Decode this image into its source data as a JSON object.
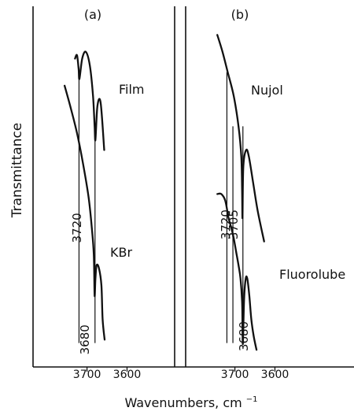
{
  "chart_data": {
    "type": "line",
    "ylabel": "Transmittance",
    "xlabel": "Wavenumbers, cm",
    "xlabel_superscript": "−1",
    "grid": false,
    "axis_color": "#111111",
    "line_color": "#111111",
    "panels": [
      {
        "label": "(a)",
        "x_ticks": [
          3700,
          3600
        ],
        "xlim": [
          3770,
          3540
        ],
        "reference_lines": [
          3720,
          3680
        ],
        "annotations": [
          {
            "text": "3720",
            "x": 3720,
            "y": 0.42
          },
          {
            "text": "3680",
            "x": 3680,
            "y": 0.09
          }
        ],
        "series": [
          {
            "name": "Film",
            "x": [
              3730,
              3725,
              3721,
              3719,
              3712,
              3703,
              3693,
              3685,
              3681,
              3679,
              3674,
              3666,
              3657
            ],
            "y": [
              0.92,
              0.93,
              0.89,
              0.86,
              0.92,
              0.94,
              0.9,
              0.81,
              0.72,
              0.68,
              0.78,
              0.79,
              0.65
            ]
          },
          {
            "name": "KBr",
            "x": [
              3756,
              3742,
              3725,
              3710,
              3696,
              3688,
              3683,
              3681,
              3679,
              3676,
              3670,
              3664,
              3661,
              3656
            ],
            "y": [
              0.84,
              0.78,
              0.7,
              0.61,
              0.51,
              0.42,
              0.34,
              0.22,
              0.27,
              0.31,
              0.3,
              0.25,
              0.15,
              0.09
            ]
          }
        ]
      },
      {
        "label": "(b)",
        "x_ticks": [
          3700,
          3600
        ],
        "xlim": [
          3770,
          3540
        ],
        "reference_lines": [
          3720,
          3705,
          3680
        ],
        "annotations": [
          {
            "text": "3720",
            "x": 3720,
            "y": 0.43
          },
          {
            "text": "3705",
            "x": 3705,
            "y": 0.43
          },
          {
            "text": "3680",
            "x": 3680,
            "y": 0.1
          }
        ],
        "series": [
          {
            "name": "Nujol",
            "x": [
              3744,
              3731,
              3718,
              3703,
              3691,
              3684,
              3682,
              3681,
              3679,
              3672,
              3665,
              3654,
              3643,
              3627
            ],
            "y": [
              0.99,
              0.94,
              0.88,
              0.81,
              0.72,
              0.63,
              0.53,
              0.45,
              0.6,
              0.65,
              0.63,
              0.55,
              0.47,
              0.38
            ]
          },
          {
            "name": "Fluorolube",
            "x": [
              3744,
              3734,
              3724,
              3716,
              3709,
              3703,
              3697,
              3691,
              3686,
              3682,
              3681,
              3680,
              3677,
              3673,
              3669,
              3664,
              3659,
              3653,
              3646
            ],
            "y": [
              0.52,
              0.52,
              0.5,
              0.45,
              0.42,
              0.39,
              0.35,
              0.31,
              0.27,
              0.2,
              0.12,
              0.08,
              0.21,
              0.27,
              0.27,
              0.22,
              0.15,
              0.1,
              0.06
            ]
          }
        ]
      }
    ]
  }
}
